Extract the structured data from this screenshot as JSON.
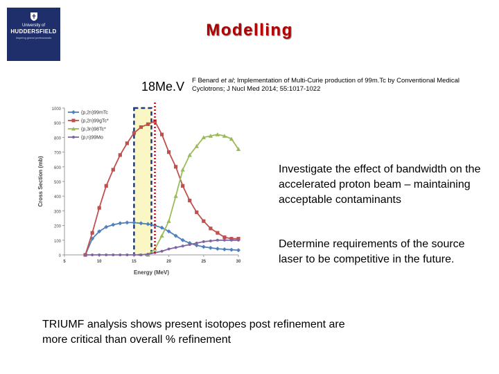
{
  "logo": {
    "line1": "University of",
    "line2": "HUDDERSFIELD",
    "line3": "Inspiring global professionals"
  },
  "title": "Modelling",
  "energy_label": "18Me.V",
  "reference": {
    "authors": "F Benard ",
    "etal": "et al",
    "rest": "; Implementation of Multi-Curie production of 99m.Tc by Conventional Medical Cyclotrons; J Nucl Med 2014; 55:1017-1022"
  },
  "paragraphs": [
    "Investigate the effect of bandwidth on the accelerated proton beam – maintaining acceptable contaminants",
    "Determine requirements of the source laser to be competitive in the future.",
    "TRIUMF analysis shows present isotopes post refinement are more critical than overall % refinement"
  ],
  "chart_data": {
    "type": "line",
    "xlabel": "Energy (MeV)",
    "ylabel": "Cross Section (mb)",
    "xlim": [
      5,
      30
    ],
    "ylim": [
      0,
      1000
    ],
    "xticks": [
      5,
      10,
      15,
      20,
      25,
      30
    ],
    "yticks": [
      0,
      100,
      200,
      300,
      400,
      500,
      600,
      700,
      800,
      900,
      1000
    ],
    "legend_position": "top-left",
    "highlight_band": [
      15,
      17.5
    ],
    "marker_x": 18,
    "series": [
      {
        "name": "(p,2n)99mTc",
        "color": "#4f81bd",
        "x": [
          8,
          9,
          10,
          11,
          12,
          13,
          14,
          15,
          16,
          17,
          18,
          19,
          20,
          21,
          22,
          23,
          24,
          25,
          26,
          27,
          28,
          29,
          30
        ],
        "y": [
          0,
          110,
          160,
          190,
          205,
          215,
          220,
          220,
          215,
          210,
          200,
          185,
          160,
          130,
          100,
          80,
          65,
          55,
          48,
          42,
          38,
          35,
          32
        ]
      },
      {
        "name": "(p,2n)99gTc*",
        "color": "#c0504d",
        "x": [
          8,
          9,
          10,
          11,
          12,
          13,
          14,
          15,
          16,
          17,
          18,
          19,
          20,
          21,
          22,
          23,
          24,
          25,
          26,
          27,
          28,
          29,
          30
        ],
        "y": [
          0,
          150,
          320,
          470,
          580,
          680,
          760,
          830,
          870,
          890,
          910,
          820,
          700,
          600,
          470,
          370,
          290,
          230,
          180,
          150,
          120,
          110,
          110
        ]
      },
      {
        "name": "(p,3n)98Tc*",
        "color": "#9bbb59",
        "x": [
          17,
          18,
          19,
          20,
          21,
          22,
          23,
          24,
          25,
          26,
          27,
          28,
          29,
          30
        ],
        "y": [
          0,
          40,
          130,
          230,
          400,
          580,
          680,
          740,
          800,
          810,
          820,
          810,
          790,
          720
        ]
      },
      {
        "name": "(p,n)99Mo",
        "color": "#8064a2",
        "x": [
          8,
          9,
          10,
          11,
          12,
          13,
          14,
          15,
          16,
          17,
          18,
          19,
          20,
          21,
          22,
          23,
          24,
          25,
          26,
          27,
          28,
          29,
          30
        ],
        "y": [
          0,
          0,
          0,
          0,
          0,
          0,
          0,
          0,
          0,
          5,
          15,
          25,
          40,
          50,
          60,
          70,
          80,
          90,
          95,
          100,
          100,
          100,
          100
        ]
      }
    ]
  }
}
